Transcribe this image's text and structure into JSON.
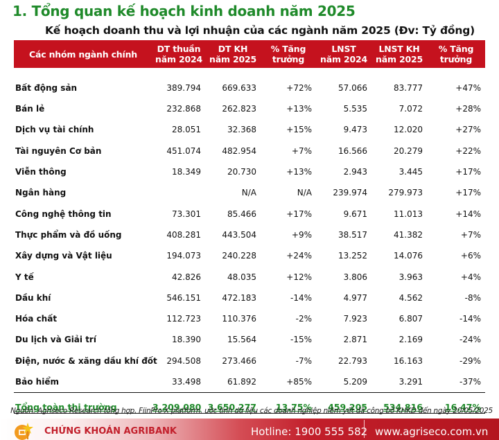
{
  "section": {
    "title": "1. Tổng quan kế hoạch kinh doanh năm 2025"
  },
  "table": {
    "title": "Kế hoạch doanh thu và lợi nhuận của các ngành năm 2025 (Đv: Tỷ đồng)",
    "header_color": "#c5121e",
    "columns": [
      {
        "line1": "Các nhóm ngành chính",
        "line2": ""
      },
      {
        "line1": "DT thuần",
        "line2": "năm 2024"
      },
      {
        "line1": "DT KH",
        "line2": "năm 2025"
      },
      {
        "line1": "% Tăng",
        "line2": "trưởng"
      },
      {
        "line1": "LNST",
        "line2": "năm 2024"
      },
      {
        "line1": "LNST KH",
        "line2": "năm 2025"
      },
      {
        "line1": "% Tăng",
        "line2": "trưởng"
      }
    ],
    "rows": [
      {
        "name": "Bất động sản",
        "dt2024": "389.794",
        "dtkh2025": "669.633",
        "dt_growth": "+72%",
        "lnst2024": "57.066",
        "lnstkh2025": "83.777",
        "lnst_growth": "+47%"
      },
      {
        "name": "Bán lẻ",
        "dt2024": "232.868",
        "dtkh2025": "262.823",
        "dt_growth": "+13%",
        "lnst2024": "5.535",
        "lnstkh2025": "7.072",
        "lnst_growth": "+28%"
      },
      {
        "name": "Dịch vụ tài chính",
        "dt2024": "28.051",
        "dtkh2025": "32.368",
        "dt_growth": "+15%",
        "lnst2024": "9.473",
        "lnstkh2025": "12.020",
        "lnst_growth": "+27%"
      },
      {
        "name": "Tài nguyên Cơ bản",
        "dt2024": "451.074",
        "dtkh2025": "482.954",
        "dt_growth": "+7%",
        "lnst2024": "16.566",
        "lnstkh2025": "20.279",
        "lnst_growth": "+22%"
      },
      {
        "name": "Viễn thông",
        "dt2024": "18.349",
        "dtkh2025": "20.730",
        "dt_growth": "+13%",
        "lnst2024": "2.943",
        "lnstkh2025": "3.445",
        "lnst_growth": "+17%"
      },
      {
        "name": "Ngân hàng",
        "dt2024": "",
        "dtkh2025": "N/A",
        "dt_growth": "N/A",
        "lnst2024": "239.974",
        "lnstkh2025": "279.973",
        "lnst_growth": "+17%"
      },
      {
        "name": "Công nghệ thông tin",
        "dt2024": "73.301",
        "dtkh2025": "85.466",
        "dt_growth": "+17%",
        "lnst2024": "9.671",
        "lnstkh2025": "11.013",
        "lnst_growth": "+14%"
      },
      {
        "name": "Thực phẩm và đồ uống",
        "dt2024": "408.281",
        "dtkh2025": "443.504",
        "dt_growth": "+9%",
        "lnst2024": "38.517",
        "lnstkh2025": "41.382",
        "lnst_growth": "+7%"
      },
      {
        "name": "Xây dựng và Vật liệu",
        "dt2024": "194.073",
        "dtkh2025": "240.228",
        "dt_growth": "+24%",
        "lnst2024": "13.252",
        "lnstkh2025": "14.076",
        "lnst_growth": "+6%"
      },
      {
        "name": "Y tế",
        "dt2024": "42.826",
        "dtkh2025": "48.035",
        "dt_growth": "+12%",
        "lnst2024": "3.806",
        "lnstkh2025": "3.963",
        "lnst_growth": "+4%"
      },
      {
        "name": "Dầu khí",
        "dt2024": "546.151",
        "dtkh2025": "472.183",
        "dt_growth": "-14%",
        "lnst2024": "4.977",
        "lnstkh2025": "4.562",
        "lnst_growth": "-8%"
      },
      {
        "name": "Hóa chất",
        "dt2024": "112.723",
        "dtkh2025": "110.376",
        "dt_growth": "-2%",
        "lnst2024": "7.923",
        "lnstkh2025": "6.807",
        "lnst_growth": "-14%"
      },
      {
        "name": "Du lịch và Giải trí",
        "dt2024": "18.390",
        "dtkh2025": "15.564",
        "dt_growth": "-15%",
        "lnst2024": "2.871",
        "lnstkh2025": "2.169",
        "lnst_growth": "-24%"
      },
      {
        "name": "Điện, nước & xăng dầu khí đốt",
        "dt2024": "294.508",
        "dtkh2025": "273.466",
        "dt_growth": "-7%",
        "lnst2024": "22.793",
        "lnstkh2025": "16.163",
        "lnst_growth": "-29%"
      },
      {
        "name": "Bảo hiểm",
        "dt2024": "33.498",
        "dtkh2025": "61.892",
        "dt_growth": "+85%",
        "lnst2024": "5.209",
        "lnstkh2025": "3.291",
        "lnst_growth": "-37%"
      }
    ],
    "total": {
      "name": "Tổng toàn thị trường",
      "dt2024": "3.209.080",
      "dtkh2025": "3.650.277",
      "dt_growth": "13,75%",
      "lnst2024": "459.205",
      "lnstkh2025": "534.816",
      "lnst_growth": "16,47%",
      "color": "#1f8a2a"
    }
  },
  "source": "Nguồn: Agriseco Research tổng hợp, FiinPro-X platform, ước tính dữ liệu các doanh nghiệp niêm yết đã công bố KHKD đến ngày 20/05/2025",
  "footer": {
    "brand": "CHỨNG KHOÁN AGRIBANK",
    "hotline": "Hotline: 1900 555 582",
    "website": "www.agriseco.com.vn",
    "logo_icon": "agribank-logo-icon"
  }
}
